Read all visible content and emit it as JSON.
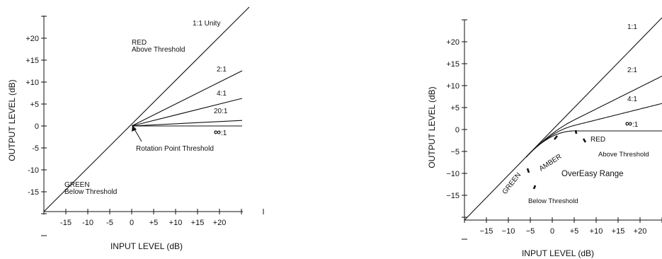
{
  "left_chart": {
    "xlabel": "INPUT LEVEL  (dB)",
    "ylabel": "OUTPUT LEVEL  (dB)",
    "x_ticks": [
      "-15",
      "-10",
      "-5",
      "0",
      "+5",
      "+10",
      "+15",
      "+20"
    ],
    "y_ticks": [
      "+20",
      "+15",
      "+10",
      "+5",
      "0",
      "-5",
      "-10",
      "-15"
    ],
    "curves": [
      {
        "label": "1:1  Unity",
        "ratio": 1
      },
      {
        "label": "2:1",
        "ratio": 2
      },
      {
        "label": "4:1",
        "ratio": 4
      },
      {
        "label": "20:1",
        "ratio": 20
      },
      {
        "label": "∞:1",
        "ratio": "inf"
      }
    ],
    "annotations": {
      "red": "RED",
      "above_threshold": "Above Threshold",
      "green": "GREEN",
      "below_threshold": "Below Threshold",
      "rotation_point": "Rotation Point Threshold"
    }
  },
  "right_chart": {
    "xlabel": "INPUT LEVEL  (dB)",
    "ylabel": "OUTPUT LEVEL  (dB)",
    "x_ticks": [
      "−15",
      "−10",
      "−5",
      "0",
      "+5",
      "+10",
      "+15",
      "+20"
    ],
    "y_ticks": [
      "+20",
      "+15",
      "+10",
      "+5",
      "0",
      "−5",
      "−10",
      "−15"
    ],
    "curves": [
      {
        "label": "1:1",
        "ratio": 1
      },
      {
        "label": "2:1",
        "ratio": 2
      },
      {
        "label": "4:1",
        "ratio": 4
      },
      {
        "label": "∞:1",
        "ratio": "inf"
      }
    ],
    "annotations": {
      "green": "GREEN",
      "amber": "AMBER",
      "red": "RED",
      "above_threshold": "Above Threshold",
      "overeasy_range": "OverEasy Range",
      "below_threshold": "Below Threshold"
    }
  }
}
